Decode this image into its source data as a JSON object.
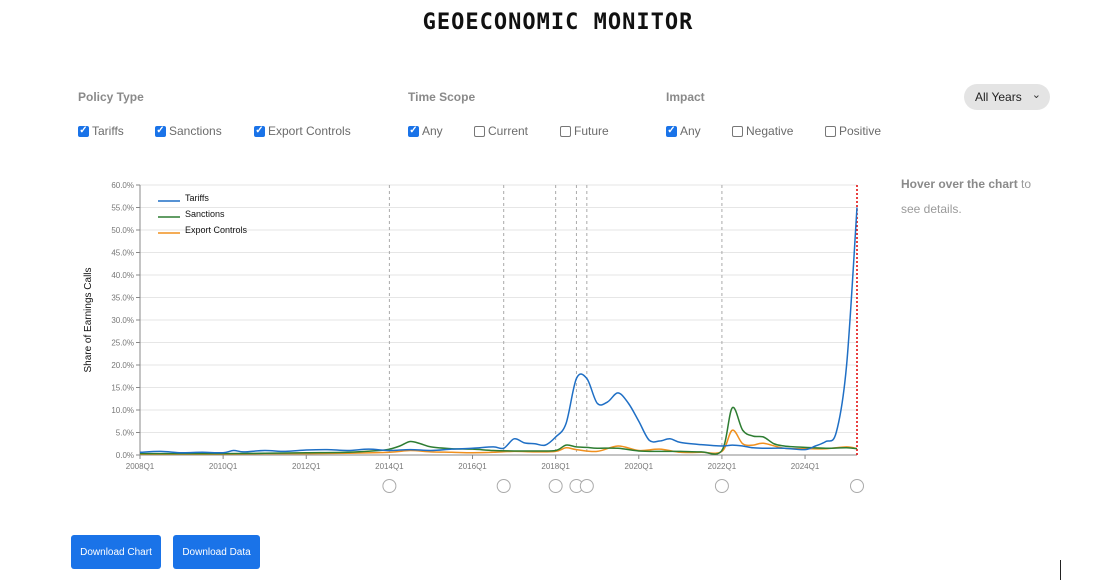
{
  "page": {
    "title": "GEOECONOMIC MONITOR"
  },
  "filters": {
    "policy_type": {
      "heading": "Policy Type",
      "options": [
        {
          "label": "Tariffs",
          "checked": true
        },
        {
          "label": "Sanctions",
          "checked": true
        },
        {
          "label": "Export Controls",
          "checked": true
        }
      ]
    },
    "time_scope": {
      "heading": "Time Scope",
      "options": [
        {
          "label": "Any",
          "checked": true
        },
        {
          "label": "Current",
          "checked": false
        },
        {
          "label": "Future",
          "checked": false
        }
      ]
    },
    "impact": {
      "heading": "Impact",
      "options": [
        {
          "label": "Any",
          "checked": true
        },
        {
          "label": "Negative",
          "checked": false
        },
        {
          "label": "Positive",
          "checked": false
        }
      ]
    },
    "years_select": {
      "value": "All Years"
    }
  },
  "hover_note": {
    "bold": "Hover over the chart",
    "rest": " to see details."
  },
  "buttons": {
    "download_chart": "Download Chart",
    "download_data": "Download Data"
  },
  "colors": {
    "accent": "#1a73e8",
    "tariffs": "#1f6fc5",
    "sanctions": "#2e7d32",
    "export_controls": "#f0901e",
    "marker_line": "#e00000"
  },
  "chart_data": {
    "type": "line",
    "ylabel": "Share of Earnings Calls",
    "ylim": [
      0,
      60
    ],
    "y_ticks": [
      "0.0%",
      "5.0%",
      "10.0%",
      "15.0%",
      "20.0%",
      "25.0%",
      "30.0%",
      "35.0%",
      "40.0%",
      "45.0%",
      "50.0%",
      "55.0%",
      "60.0%"
    ],
    "x_range": [
      2008.0,
      2025.25
    ],
    "x_ticks": [
      {
        "x": 2008.0,
        "label": "2008Q1"
      },
      {
        "x": 2010.0,
        "label": "2010Q1"
      },
      {
        "x": 2012.0,
        "label": "2012Q1"
      },
      {
        "x": 2014.0,
        "label": "2014Q1"
      },
      {
        "x": 2016.0,
        "label": "2016Q1"
      },
      {
        "x": 2018.0,
        "label": "2018Q1"
      },
      {
        "x": 2020.0,
        "label": "2020Q1"
      },
      {
        "x": 2022.0,
        "label": "2022Q1"
      },
      {
        "x": 2024.0,
        "label": "2024Q1"
      }
    ],
    "legend": "top-left",
    "grid": true,
    "event_lines": [
      2014.0,
      2016.75,
      2018.0,
      2018.5,
      2018.75,
      2022.0
    ],
    "current_line": 2025.25,
    "series": [
      {
        "name": "Tariffs",
        "color": "#1f6fc5",
        "points": [
          [
            2008.0,
            0.6
          ],
          [
            2008.5,
            0.8
          ],
          [
            2009.0,
            0.5
          ],
          [
            2009.5,
            0.6
          ],
          [
            2010.0,
            0.5
          ],
          [
            2010.25,
            1.0
          ],
          [
            2010.5,
            0.7
          ],
          [
            2011.0,
            1.0
          ],
          [
            2011.5,
            0.8
          ],
          [
            2012.0,
            1.1
          ],
          [
            2012.5,
            1.2
          ],
          [
            2013.0,
            1.0
          ],
          [
            2013.5,
            1.3
          ],
          [
            2014.0,
            1.0
          ],
          [
            2014.5,
            1.2
          ],
          [
            2015.0,
            1.0
          ],
          [
            2015.5,
            1.3
          ],
          [
            2016.0,
            1.5
          ],
          [
            2016.5,
            1.8
          ],
          [
            2016.75,
            1.5
          ],
          [
            2017.0,
            3.6
          ],
          [
            2017.25,
            2.7
          ],
          [
            2017.5,
            2.5
          ],
          [
            2017.75,
            2.2
          ],
          [
            2018.0,
            4.0
          ],
          [
            2018.25,
            7.0
          ],
          [
            2018.5,
            17.0
          ],
          [
            2018.75,
            17.0
          ],
          [
            2019.0,
            11.5
          ],
          [
            2019.25,
            11.8
          ],
          [
            2019.5,
            13.8
          ],
          [
            2019.75,
            11.5
          ],
          [
            2020.0,
            7.5
          ],
          [
            2020.25,
            3.3
          ],
          [
            2020.5,
            3.1
          ],
          [
            2020.75,
            3.6
          ],
          [
            2021.0,
            2.8
          ],
          [
            2021.5,
            2.3
          ],
          [
            2022.0,
            2.0
          ],
          [
            2022.25,
            2.2
          ],
          [
            2022.5,
            2.0
          ],
          [
            2022.75,
            1.6
          ],
          [
            2023.0,
            1.5
          ],
          [
            2023.5,
            1.5
          ],
          [
            2024.0,
            1.2
          ],
          [
            2024.25,
            2.0
          ],
          [
            2024.5,
            3.0
          ],
          [
            2024.75,
            5.0
          ],
          [
            2025.0,
            20.0
          ],
          [
            2025.25,
            55.0
          ]
        ]
      },
      {
        "name": "Sanctions",
        "color": "#2e7d32",
        "points": [
          [
            2008.0,
            0.3
          ],
          [
            2009.0,
            0.3
          ],
          [
            2010.0,
            0.3
          ],
          [
            2011.0,
            0.4
          ],
          [
            2012.0,
            0.5
          ],
          [
            2013.0,
            0.6
          ],
          [
            2013.75,
            1.0
          ],
          [
            2014.0,
            1.3
          ],
          [
            2014.25,
            2.0
          ],
          [
            2014.5,
            3.0
          ],
          [
            2014.75,
            2.5
          ],
          [
            2015.0,
            1.8
          ],
          [
            2015.5,
            1.4
          ],
          [
            2016.0,
            1.3
          ],
          [
            2016.5,
            1.0
          ],
          [
            2017.0,
            0.9
          ],
          [
            2017.5,
            0.9
          ],
          [
            2018.0,
            1.0
          ],
          [
            2018.25,
            2.2
          ],
          [
            2018.5,
            1.8
          ],
          [
            2018.75,
            1.7
          ],
          [
            2019.0,
            1.5
          ],
          [
            2019.5,
            1.5
          ],
          [
            2020.0,
            0.9
          ],
          [
            2020.5,
            0.8
          ],
          [
            2021.0,
            0.8
          ],
          [
            2021.5,
            0.7
          ],
          [
            2022.0,
            1.0
          ],
          [
            2022.25,
            10.5
          ],
          [
            2022.5,
            5.5
          ],
          [
            2022.75,
            4.2
          ],
          [
            2023.0,
            4.0
          ],
          [
            2023.25,
            2.5
          ],
          [
            2023.5,
            2.0
          ],
          [
            2023.75,
            1.8
          ],
          [
            2024.0,
            1.7
          ],
          [
            2024.5,
            1.5
          ],
          [
            2025.0,
            1.6
          ],
          [
            2025.25,
            1.4
          ]
        ]
      },
      {
        "name": "Export Controls",
        "color": "#f0901e",
        "points": [
          [
            2008.0,
            0.2
          ],
          [
            2009.0,
            0.2
          ],
          [
            2010.0,
            0.2
          ],
          [
            2011.0,
            0.3
          ],
          [
            2012.0,
            0.3
          ],
          [
            2013.0,
            0.4
          ],
          [
            2014.0,
            0.6
          ],
          [
            2014.5,
            1.0
          ],
          [
            2015.0,
            0.7
          ],
          [
            2015.5,
            0.6
          ],
          [
            2016.0,
            0.5
          ],
          [
            2016.5,
            0.6
          ],
          [
            2017.0,
            0.8
          ],
          [
            2017.5,
            0.7
          ],
          [
            2018.0,
            0.8
          ],
          [
            2018.25,
            1.6
          ],
          [
            2018.5,
            1.2
          ],
          [
            2019.0,
            0.8
          ],
          [
            2019.5,
            2.0
          ],
          [
            2020.0,
            1.0
          ],
          [
            2020.5,
            1.3
          ],
          [
            2021.0,
            0.6
          ],
          [
            2021.5,
            0.6
          ],
          [
            2022.0,
            0.8
          ],
          [
            2022.25,
            5.5
          ],
          [
            2022.5,
            2.5
          ],
          [
            2022.75,
            2.2
          ],
          [
            2023.0,
            2.6
          ],
          [
            2023.5,
            1.5
          ],
          [
            2024.0,
            1.4
          ],
          [
            2024.5,
            1.4
          ],
          [
            2025.0,
            1.8
          ],
          [
            2025.25,
            1.4
          ]
        ]
      }
    ]
  }
}
